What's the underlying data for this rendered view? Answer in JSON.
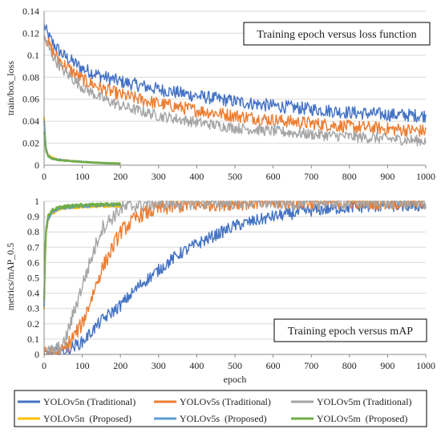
{
  "chart_data": [
    {
      "type": "line",
      "annotation": "Training epoch versus loss function",
      "xlabel": "",
      "ylabel": "train/box_loss",
      "xlim": [
        0,
        1000
      ],
      "ylim": [
        0,
        0.14
      ],
      "xticks": [
        "0",
        "100",
        "200",
        "300",
        "400",
        "500",
        "600",
        "700",
        "800",
        "900",
        "1000"
      ],
      "yticks": [
        "0",
        "0.02",
        "0.04",
        "0.06",
        "0.08",
        "0.1",
        "0.12",
        "0.14"
      ],
      "grid": "horizontal",
      "series": [
        {
          "name": "YOLOv5n (Traditional)",
          "color": "#4472C4",
          "x": [
            0,
            10,
            25,
            50,
            100,
            150,
            200,
            300,
            400,
            500,
            600,
            700,
            800,
            900,
            1000
          ],
          "y": [
            0.127,
            0.118,
            0.11,
            0.1,
            0.088,
            0.081,
            0.076,
            0.069,
            0.063,
            0.058,
            0.054,
            0.051,
            0.048,
            0.046,
            0.045
          ],
          "noise": 0.006
        },
        {
          "name": "YOLOv5s (Traditional)",
          "color": "#ED7D31",
          "x": [
            0,
            10,
            25,
            50,
            100,
            150,
            200,
            300,
            400,
            500,
            600,
            700,
            800,
            900,
            1000
          ],
          "y": [
            0.12,
            0.111,
            0.102,
            0.092,
            0.078,
            0.07,
            0.064,
            0.056,
            0.05,
            0.045,
            0.041,
            0.038,
            0.035,
            0.033,
            0.031
          ],
          "noise": 0.006
        },
        {
          "name": "YOLOv5m (Traditional)",
          "color": "#A5A5A5",
          "x": [
            0,
            10,
            25,
            50,
            100,
            150,
            200,
            300,
            400,
            500,
            600,
            700,
            800,
            900,
            1000
          ],
          "y": [
            0.118,
            0.108,
            0.098,
            0.086,
            0.071,
            0.061,
            0.054,
            0.045,
            0.039,
            0.034,
            0.031,
            0.028,
            0.026,
            0.024,
            0.022
          ],
          "noise": 0.005
        },
        {
          "name": "YOLOv5n  (Proposed)",
          "color": "#FFC000",
          "x": [
            0,
            2,
            5,
            10,
            20,
            40,
            70,
            100,
            150,
            200
          ],
          "y": [
            0.044,
            0.03,
            0.016,
            0.01,
            0.007,
            0.005,
            0.004,
            0.003,
            0.002,
            0.0015
          ],
          "noise": 0.0005
        },
        {
          "name": "YOLOv5s  (Proposed)",
          "color": "#5B9BD5",
          "x": [
            0,
            2,
            5,
            10,
            20,
            40,
            70,
            100,
            150,
            200
          ],
          "y": [
            0.04,
            0.028,
            0.015,
            0.009,
            0.006,
            0.005,
            0.004,
            0.003,
            0.002,
            0.0015
          ],
          "noise": 0.0005
        },
        {
          "name": "YOLOv5m  (Proposed)",
          "color": "#70AD47",
          "x": [
            0,
            2,
            5,
            10,
            20,
            40,
            70,
            100,
            150,
            200
          ],
          "y": [
            0.03,
            0.022,
            0.013,
            0.008,
            0.006,
            0.0045,
            0.0035,
            0.003,
            0.002,
            0.0015
          ],
          "noise": 0.0005
        }
      ]
    },
    {
      "type": "line",
      "annotation": "Training epoch versus mAP",
      "xlabel": "epoch",
      "ylabel": "metrics/mAP_0.5",
      "xlim": [
        0,
        1000
      ],
      "ylim": [
        0,
        1
      ],
      "xticks": [
        "0",
        "100",
        "200",
        "300",
        "400",
        "500",
        "600",
        "700",
        "800",
        "900",
        "1000"
      ],
      "yticks": [
        "0",
        "0.1",
        "0.2",
        "0.3",
        "0.4",
        "0.5",
        "0.6",
        "0.7",
        "0.8",
        "0.9",
        "1"
      ],
      "grid": "horizontal",
      "series": [
        {
          "name": "YOLOv5n (Traditional)",
          "color": "#4472C4",
          "x": [
            0,
            50,
            100,
            150,
            200,
            250,
            300,
            350,
            400,
            450,
            500,
            600,
            700,
            800,
            900,
            1000
          ],
          "y": [
            0.0,
            0.02,
            0.08,
            0.22,
            0.32,
            0.45,
            0.55,
            0.65,
            0.72,
            0.78,
            0.84,
            0.9,
            0.94,
            0.96,
            0.97,
            0.97
          ],
          "noise": 0.04
        },
        {
          "name": "YOLOv5s (Traditional)",
          "color": "#ED7D31",
          "x": [
            0,
            50,
            100,
            150,
            200,
            250,
            300,
            350,
            400,
            500,
            600,
            1000
          ],
          "y": [
            0.0,
            0.02,
            0.2,
            0.55,
            0.8,
            0.91,
            0.95,
            0.97,
            0.98,
            0.99,
            0.995,
            0.995
          ],
          "noise": 0.05
        },
        {
          "name": "YOLOv5m (Traditional)",
          "color": "#A5A5A5",
          "x": [
            0,
            50,
            100,
            150,
            200,
            250,
            300,
            400,
            1000
          ],
          "y": [
            0.0,
            0.05,
            0.45,
            0.82,
            0.95,
            0.98,
            0.99,
            0.995,
            0.995
          ],
          "noise": 0.05
        },
        {
          "name": "YOLOv5n  (Proposed)",
          "color": "#FFC000",
          "x": [
            0,
            2,
            5,
            10,
            20,
            40,
            70,
            100,
            150,
            200
          ],
          "y": [
            0.3,
            0.55,
            0.78,
            0.87,
            0.92,
            0.95,
            0.96,
            0.965,
            0.97,
            0.97
          ],
          "noise": 0.01
        },
        {
          "name": "YOLOv5s  (Proposed)",
          "color": "#5B9BD5",
          "x": [
            0,
            2,
            5,
            10,
            20,
            40,
            70,
            100,
            150,
            200
          ],
          "y": [
            0.32,
            0.58,
            0.8,
            0.88,
            0.93,
            0.955,
            0.965,
            0.97,
            0.975,
            0.978
          ],
          "noise": 0.01
        },
        {
          "name": "YOLOv5m  (Proposed)",
          "color": "#70AD47",
          "x": [
            0,
            2,
            5,
            10,
            20,
            40,
            70,
            100,
            150,
            200
          ],
          "y": [
            0.35,
            0.62,
            0.82,
            0.9,
            0.94,
            0.96,
            0.97,
            0.975,
            0.98,
            0.98
          ],
          "noise": 0.01
        }
      ]
    }
  ],
  "legend": [
    {
      "name": "YOLOv5n (Traditional)",
      "color": "#4472C4"
    },
    {
      "name": "YOLOv5s (Traditional)",
      "color": "#ED7D31"
    },
    {
      "name": "YOLOv5m (Traditional)",
      "color": "#A5A5A5"
    },
    {
      "name": "YOLOv5n  (Proposed)",
      "color": "#FFC000"
    },
    {
      "name": "YOLOv5s  (Proposed)",
      "color": "#5B9BD5"
    },
    {
      "name": "YOLOv5m  (Proposed)",
      "color": "#70AD47"
    }
  ]
}
